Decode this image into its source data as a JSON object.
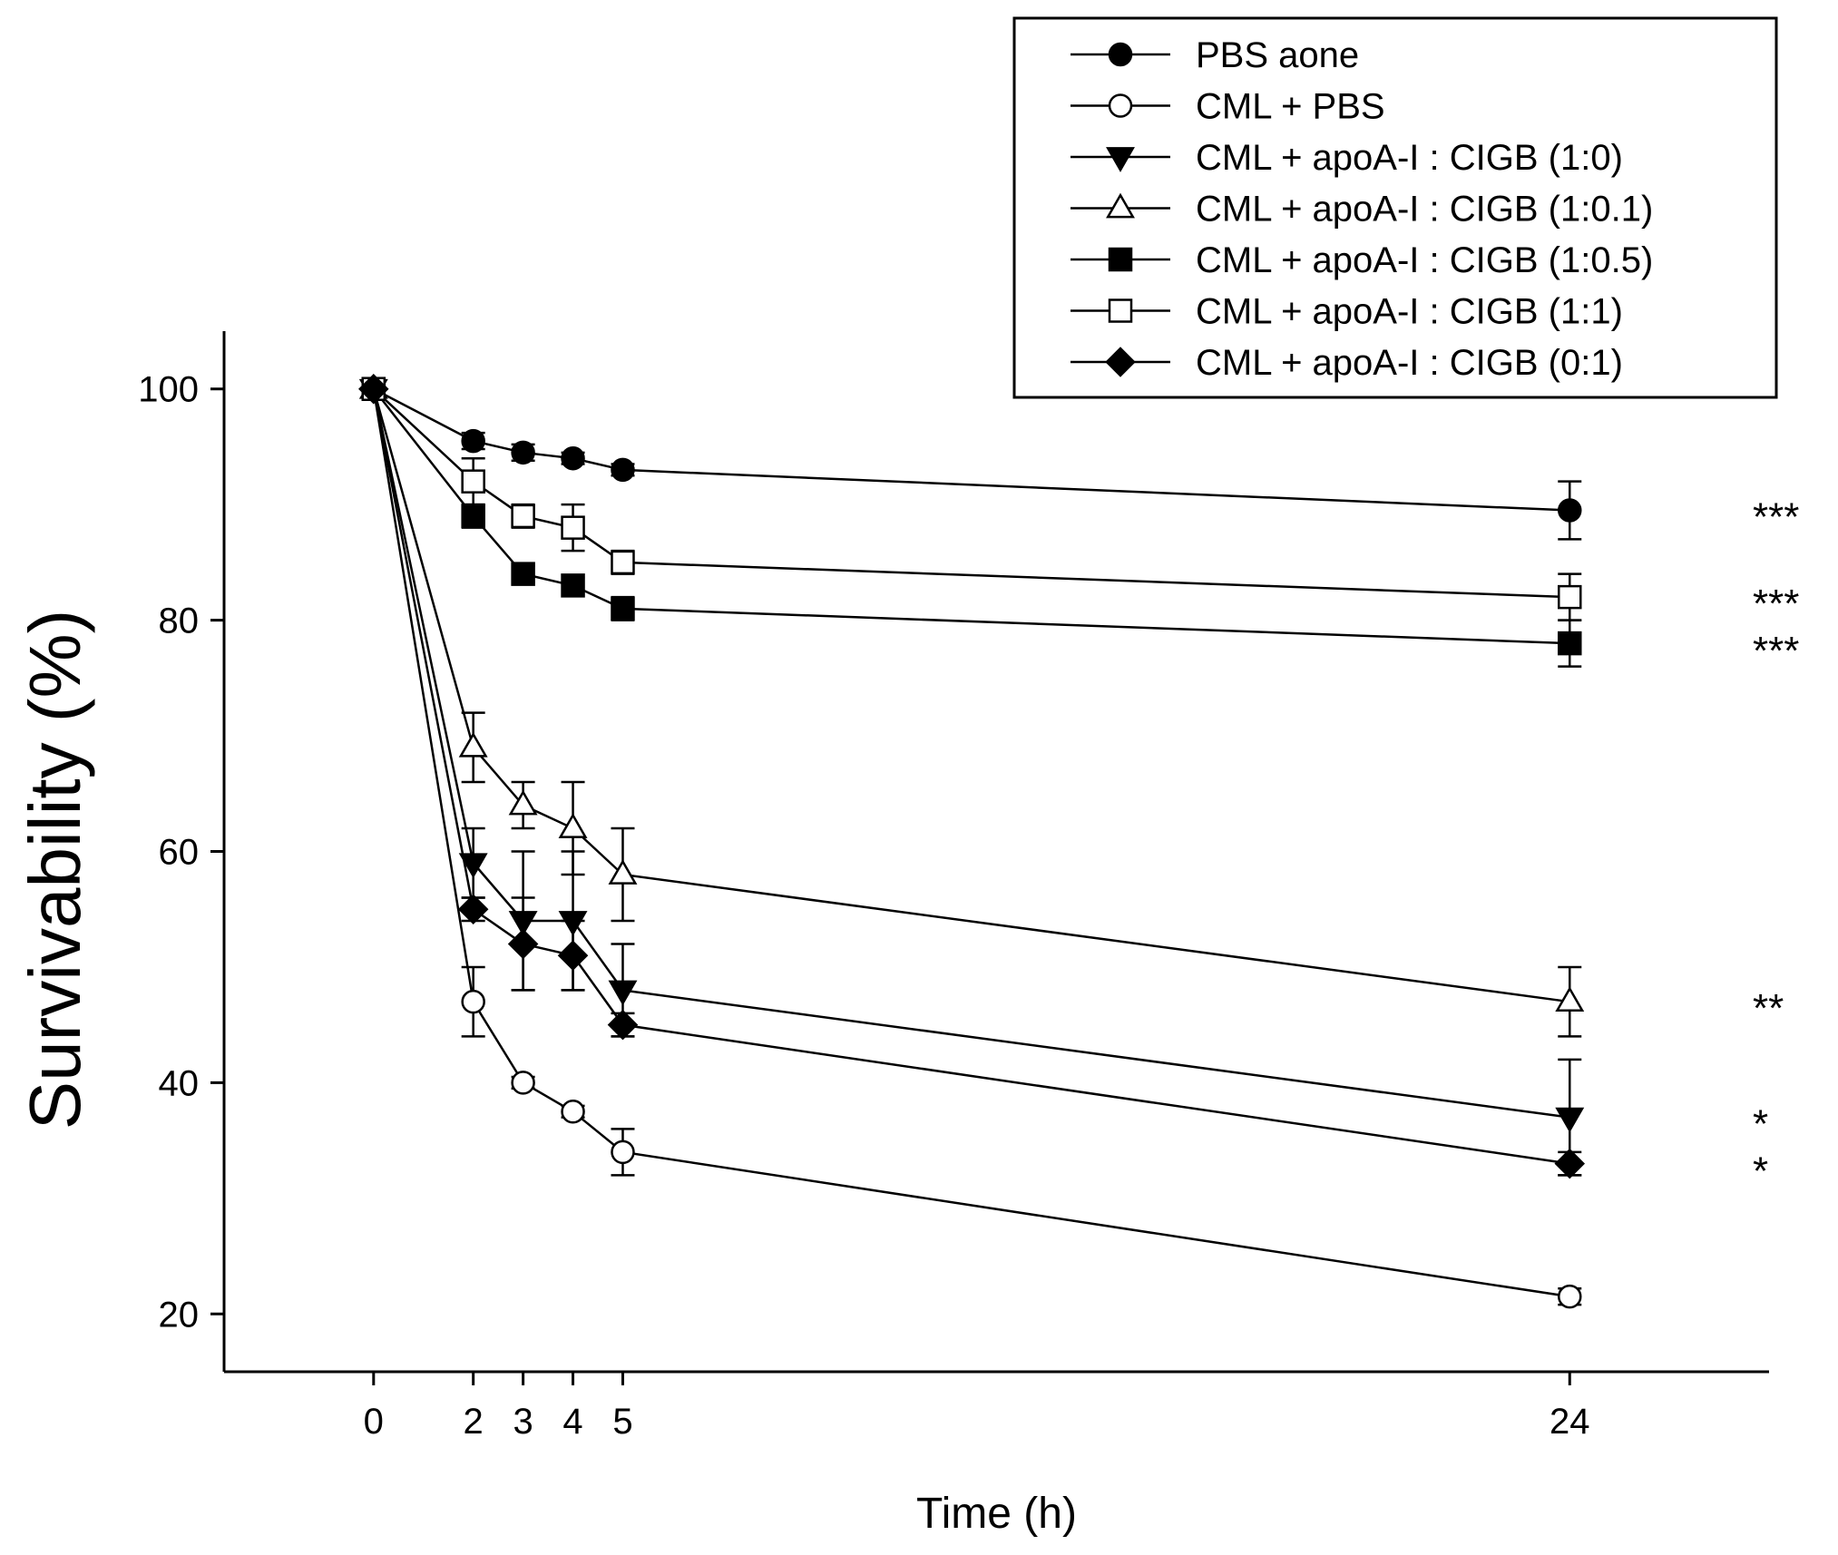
{
  "chart_data": {
    "type": "line",
    "title": "",
    "xlabel": "Time (h)",
    "ylabel": "Survivability (%)",
    "x": [
      0,
      2,
      3,
      4,
      5,
      24
    ],
    "x_ticks": [
      "0",
      "2",
      "3",
      "4",
      "5",
      "24"
    ],
    "y_ticks": [
      "20",
      "40",
      "60",
      "80",
      "100"
    ],
    "xlim": [
      -3,
      28
    ],
    "ylim": [
      15,
      105
    ],
    "grid": false,
    "legend_position": "top-right",
    "series": [
      {
        "name": "PBS aone",
        "marker": "circle",
        "fill": "filled",
        "values": [
          100,
          95.5,
          94.5,
          94,
          93,
          89.5
        ],
        "errors": [
          0,
          0.7,
          0.7,
          0.5,
          0.5,
          2.5
        ],
        "significance": "***"
      },
      {
        "name": "CML + PBS",
        "marker": "circle",
        "fill": "open",
        "values": [
          100,
          47,
          40,
          37.5,
          34,
          21.5
        ],
        "errors": [
          0,
          3,
          0.5,
          0.5,
          2,
          0.7
        ],
        "significance": ""
      },
      {
        "name": "CML + apoA-I : CIGB (1:0)",
        "marker": "triangle-down",
        "fill": "filled",
        "values": [
          100,
          59,
          54,
          54,
          48,
          37
        ],
        "errors": [
          0,
          3,
          6,
          6,
          4,
          5
        ],
        "significance": "*"
      },
      {
        "name": "CML + apoA-I : CIGB (1:0.1)",
        "marker": "triangle-up",
        "fill": "open",
        "values": [
          100,
          69,
          64,
          62,
          58,
          47
        ],
        "errors": [
          0,
          3,
          2,
          4,
          4,
          3
        ],
        "significance": "**"
      },
      {
        "name": "CML + apoA-I : CIGB (1:0.5)",
        "marker": "square",
        "fill": "filled",
        "values": [
          100,
          89,
          84,
          83,
          81,
          78
        ],
        "errors": [
          0,
          1,
          0.7,
          0.7,
          1,
          2
        ],
        "significance": "***"
      },
      {
        "name": "CML + apoA-I : CIGB (1:1)",
        "marker": "square",
        "fill": "open",
        "values": [
          100,
          92,
          89,
          88,
          85,
          82
        ],
        "errors": [
          0,
          2,
          1,
          2,
          1,
          2
        ],
        "significance": "***"
      },
      {
        "name": "CML + apoA-I : CIGB (0:1)",
        "marker": "diamond",
        "fill": "filled",
        "values": [
          100,
          55,
          52,
          51,
          45,
          33
        ],
        "errors": [
          0,
          1,
          4,
          3,
          1,
          1
        ],
        "significance": "*"
      }
    ]
  }
}
